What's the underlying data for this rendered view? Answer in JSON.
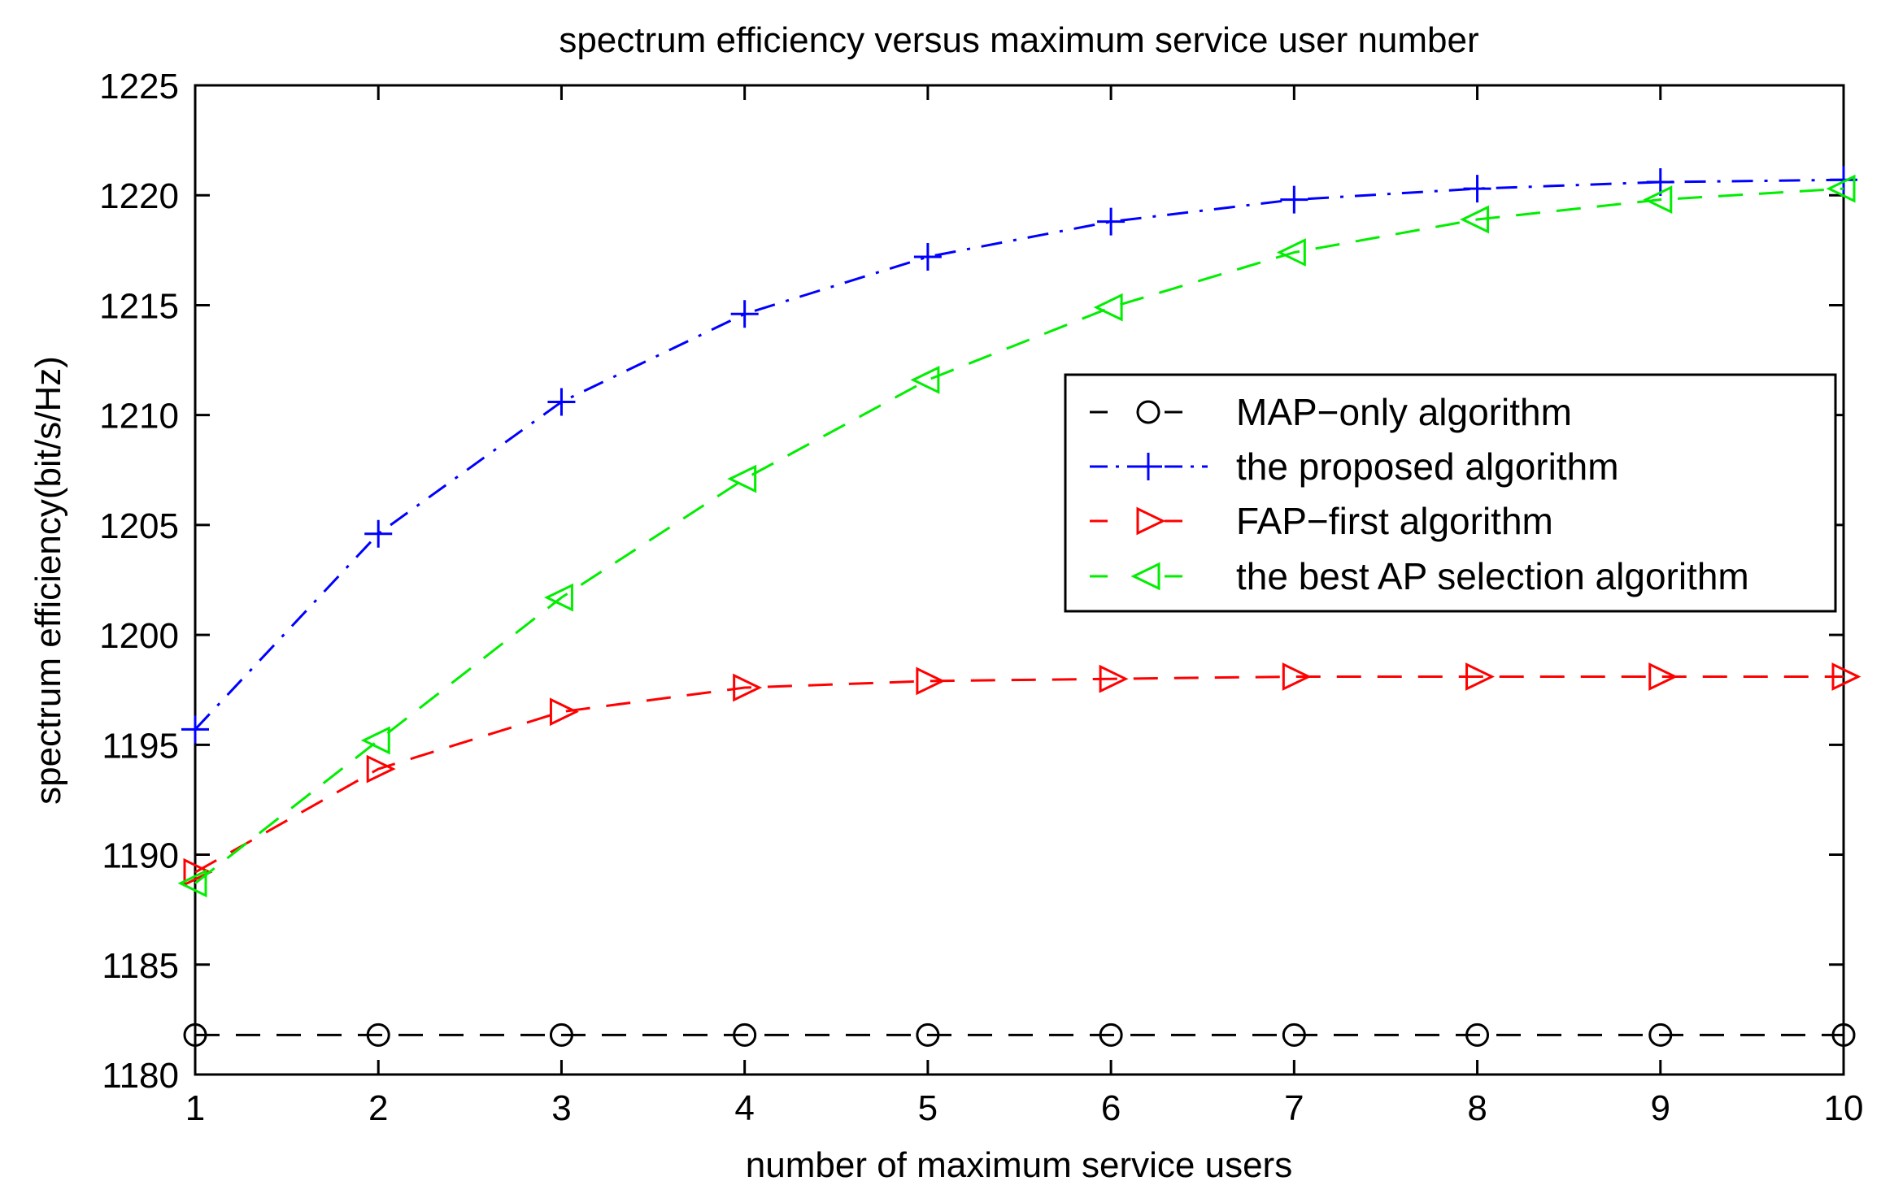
{
  "chart_data": {
    "type": "line",
    "title": "spectrum efficiency versus maximum service user number",
    "xlabel": "number of maximum service users",
    "ylabel": "spectrum efficiency(bit/s/Hz)",
    "xlim": [
      1,
      10
    ],
    "ylim": [
      1180,
      1225
    ],
    "xticks": [
      1,
      2,
      3,
      4,
      5,
      6,
      7,
      8,
      9,
      10
    ],
    "yticks": [
      1180,
      1185,
      1190,
      1195,
      1200,
      1205,
      1210,
      1215,
      1220,
      1225
    ],
    "legend_position": "center-right",
    "grid": false,
    "x": [
      1,
      2,
      3,
      4,
      5,
      6,
      7,
      8,
      9,
      10
    ],
    "series": [
      {
        "name": "MAP−only algorithm",
        "color": "#000000",
        "line_style": "dashed",
        "marker": "circle",
        "values": [
          1181.8,
          1181.8,
          1181.8,
          1181.8,
          1181.8,
          1181.8,
          1181.8,
          1181.8,
          1181.8,
          1181.8
        ]
      },
      {
        "name": "the proposed algorithm",
        "color": "#0000ff",
        "line_style": "dashdot",
        "marker": "plus",
        "values": [
          1195.7,
          1204.6,
          1210.6,
          1214.6,
          1217.2,
          1218.8,
          1219.8,
          1220.3,
          1220.6,
          1220.7
        ]
      },
      {
        "name": "FAP−first algorithm",
        "color": "#ff0000",
        "line_style": "dashed",
        "marker": "triangle-right",
        "values": [
          1189.2,
          1193.9,
          1196.5,
          1197.6,
          1197.9,
          1198.0,
          1198.1,
          1198.1,
          1198.1,
          1198.1
        ]
      },
      {
        "name": "the best AP selection algorithm",
        "color": "#00ee00",
        "line_style": "dashed",
        "marker": "triangle-left",
        "values": [
          1188.7,
          1195.2,
          1201.7,
          1207.1,
          1211.6,
          1214.9,
          1217.4,
          1218.9,
          1219.8,
          1220.3
        ]
      }
    ]
  }
}
